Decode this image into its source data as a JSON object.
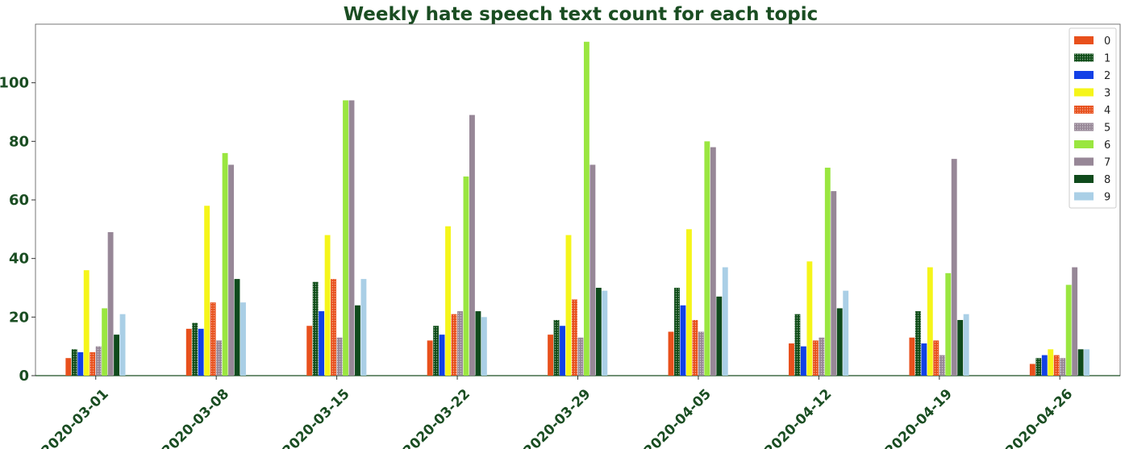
{
  "chart_data": {
    "type": "bar",
    "title": "Weekly hate speech text count for each topic",
    "xlabel": "",
    "ylabel": "",
    "ylim": [
      0,
      120
    ],
    "yticks": [
      0,
      20,
      40,
      60,
      80,
      100
    ],
    "categories": [
      "2020-03-01",
      "2020-03-08",
      "2020-03-15",
      "2020-03-22",
      "2020-03-29",
      "2020-04-05",
      "2020-04-12",
      "2020-04-19",
      "2020-04-26"
    ],
    "grid": false,
    "legend_position": "top-right",
    "series": [
      {
        "name": "0",
        "color": "#e8501c",
        "pattern": "solid",
        "values": [
          6,
          16,
          17,
          12,
          14,
          15,
          11,
          13,
          4
        ]
      },
      {
        "name": "1",
        "color": "#0f4d18",
        "pattern": "dots",
        "values": [
          9,
          18,
          32,
          17,
          19,
          30,
          21,
          22,
          6
        ]
      },
      {
        "name": "2",
        "color": "#1240e6",
        "pattern": "solid",
        "values": [
          8,
          16,
          22,
          14,
          17,
          24,
          10,
          11,
          7
        ]
      },
      {
        "name": "3",
        "color": "#f5f51a",
        "pattern": "solid",
        "values": [
          36,
          58,
          48,
          51,
          48,
          50,
          39,
          37,
          9
        ]
      },
      {
        "name": "4",
        "color": "#e8501c",
        "pattern": "dots",
        "values": [
          8,
          25,
          33,
          21,
          26,
          19,
          12,
          12,
          7
        ]
      },
      {
        "name": "5",
        "color": "#978797",
        "pattern": "dots",
        "values": [
          10,
          12,
          13,
          22,
          13,
          15,
          13,
          7,
          6
        ]
      },
      {
        "name": "6",
        "color": "#9ae640",
        "pattern": "solid",
        "values": [
          23,
          76,
          94,
          68,
          114,
          80,
          71,
          35,
          31
        ]
      },
      {
        "name": "7",
        "color": "#978797",
        "pattern": "solid",
        "values": [
          49,
          72,
          94,
          89,
          72,
          78,
          63,
          74,
          37
        ]
      },
      {
        "name": "8",
        "color": "#0f4a1c",
        "pattern": "solid",
        "values": [
          14,
          33,
          24,
          22,
          30,
          27,
          23,
          19,
          9
        ]
      },
      {
        "name": "9",
        "color": "#aacfe6",
        "pattern": "solid",
        "values": [
          21,
          25,
          33,
          20,
          29,
          37,
          29,
          21,
          9
        ]
      }
    ]
  }
}
